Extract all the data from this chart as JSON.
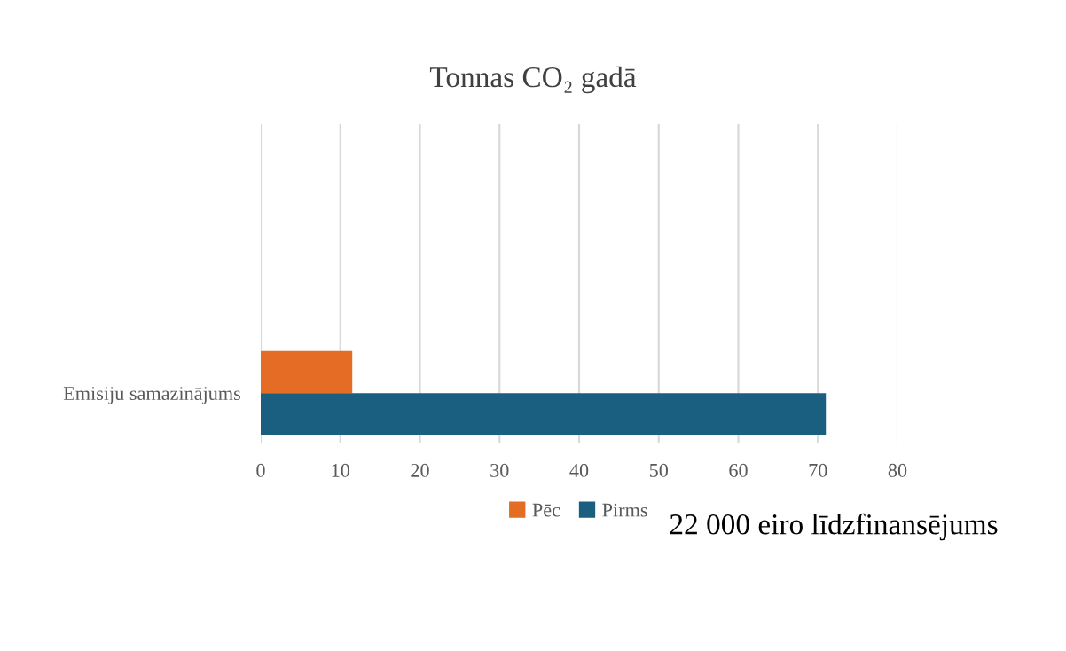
{
  "chart_data": {
    "type": "bar",
    "orientation": "horizontal",
    "title": "Tonnas CO₂ gadā",
    "categories": [
      "Emisiju samazinājums"
    ],
    "series": [
      {
        "name": "Pēc",
        "color": "#e46c25",
        "values": [
          11.5
        ]
      },
      {
        "name": "Pirms",
        "color": "#1a5e80",
        "values": [
          71
        ]
      }
    ],
    "xlim": [
      0,
      80
    ],
    "xticks": [
      0,
      10,
      20,
      30,
      40,
      50,
      60,
      70,
      80
    ],
    "grid": "x",
    "legend": "bottom",
    "annotations": [
      "22 000 eiro līdzfinansējums"
    ]
  }
}
